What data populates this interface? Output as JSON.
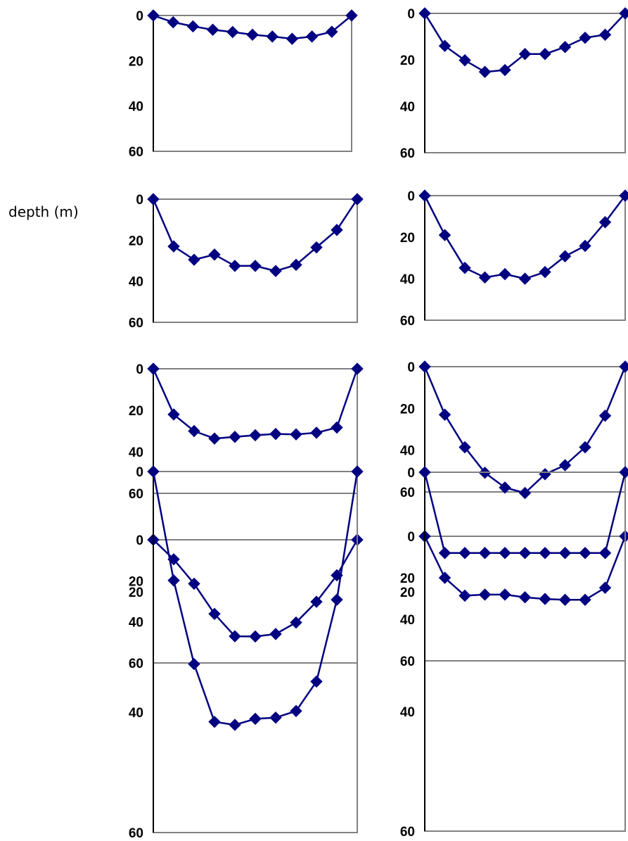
{
  "figure": {
    "ylabel": "depth (m)"
  },
  "chart_data": [
    {
      "type": "line",
      "ylim": [
        0,
        60
      ],
      "y_inverted": true,
      "yticks": [
        "0",
        "20",
        "40",
        "60"
      ],
      "x": [
        0,
        1,
        2,
        3,
        4,
        5,
        6,
        7,
        8,
        9,
        10
      ],
      "values": [
        0,
        3,
        4.8,
        6.3,
        7.3,
        8.5,
        9.3,
        10.3,
        9.3,
        7.2,
        0
      ],
      "color": "#000080"
    },
    {
      "type": "line",
      "ylim": [
        0,
        60
      ],
      "y_inverted": true,
      "yticks": [
        "0",
        "20",
        "40",
        "60"
      ],
      "x": [
        0,
        1,
        2,
        3,
        4,
        5,
        6,
        7,
        8,
        9,
        10
      ],
      "values": [
        0,
        14,
        20.2,
        25.2,
        24.4,
        17.5,
        17.5,
        14.5,
        10.5,
        9.2,
        0
      ],
      "color": "#000080"
    },
    {
      "type": "line",
      "ylim": [
        0,
        60
      ],
      "y_inverted": true,
      "yticks": [
        "0",
        "20",
        "40",
        "60"
      ],
      "x": [
        0,
        1,
        2,
        3,
        4,
        5,
        6,
        7,
        8,
        9,
        10
      ],
      "values": [
        0,
        23,
        29.5,
        27,
        32.5,
        32.5,
        35,
        32,
        23.5,
        15,
        0
      ],
      "color": "#000080"
    },
    {
      "type": "line",
      "ylim": [
        0,
        60
      ],
      "y_inverted": true,
      "yticks": [
        "0",
        "20",
        "40",
        "60"
      ],
      "x": [
        0,
        1,
        2,
        3,
        4,
        5,
        6,
        7,
        8,
        9,
        10
      ],
      "values": [
        0,
        19,
        34.8,
        39.4,
        37.8,
        40,
        36.8,
        29.2,
        24.2,
        12.8,
        0
      ],
      "color": "#000080"
    },
    {
      "type": "line",
      "ylim": [
        0,
        60
      ],
      "y_inverted": true,
      "yticks": [
        "0",
        "20",
        "40",
        "60"
      ],
      "x": [
        0,
        1,
        2,
        3,
        4,
        5,
        6,
        7,
        8,
        9,
        10
      ],
      "values": [
        0,
        22,
        30,
        33.6,
        32.8,
        32,
        31.4,
        31.6,
        30.8,
        28.3,
        0
      ],
      "color": "#000080"
    },
    {
      "type": "line",
      "ylim": [
        0,
        60
      ],
      "y_inverted": true,
      "yticks": [
        "0",
        "20",
        "40",
        "60"
      ],
      "x": [
        0,
        1,
        2,
        3,
        4,
        5,
        6,
        7,
        8,
        9,
        10
      ],
      "values": [
        0,
        23,
        38.6,
        50.8,
        57.9,
        60.5,
        51.5,
        47.2,
        38.6,
        23.5,
        0
      ],
      "color": "#000080"
    },
    {
      "type": "line",
      "ylim": [
        0,
        60
      ],
      "y_inverted": true,
      "yticks": [
        "0",
        "20",
        "40",
        "60"
      ],
      "x": [
        0,
        1,
        2,
        3,
        4,
        5,
        6,
        7,
        8,
        9,
        10
      ],
      "values": [
        0,
        9.5,
        21.4,
        36.1,
        47,
        47.1,
        45.9,
        40.3,
        30.2,
        17.3,
        0
      ],
      "color": "#000080"
    },
    {
      "type": "line",
      "ylim": [
        0,
        60
      ],
      "y_inverted": true,
      "yticks": [
        "0",
        "20",
        "40",
        "60"
      ],
      "x": [
        0,
        1,
        2,
        3,
        4,
        5,
        6,
        7,
        8,
        9,
        10
      ],
      "values": [
        0,
        20,
        28.6,
        28.1,
        28.1,
        29.4,
        30.2,
        30.6,
        30.6,
        24.8,
        0
      ],
      "color": "#000080"
    },
    {
      "type": "line",
      "ylim": [
        0,
        60
      ],
      "y_inverted": true,
      "yticks": [
        "0",
        "20",
        "40",
        "60"
      ],
      "x": [
        0,
        1,
        2,
        3,
        4,
        5,
        6,
        7,
        8,
        9,
        10
      ],
      "values": [
        0,
        18.1,
        32,
        41.6,
        42.1,
        41.1,
        40.9,
        39.8,
        34.9,
        21.3,
        0
      ],
      "color": "#000080"
    },
    {
      "type": "line",
      "ylim": [
        0,
        60
      ],
      "y_inverted": true,
      "yticks": [
        "0",
        "20",
        "40",
        "60"
      ],
      "x": [
        0,
        1,
        2,
        3,
        4,
        5,
        6,
        7,
        8,
        9,
        10
      ],
      "values": [
        0,
        13.5,
        13.5,
        13.5,
        13.5,
        13.5,
        13.5,
        13.5,
        13.5,
        13.5,
        0
      ],
      "color": "#000080"
    }
  ]
}
